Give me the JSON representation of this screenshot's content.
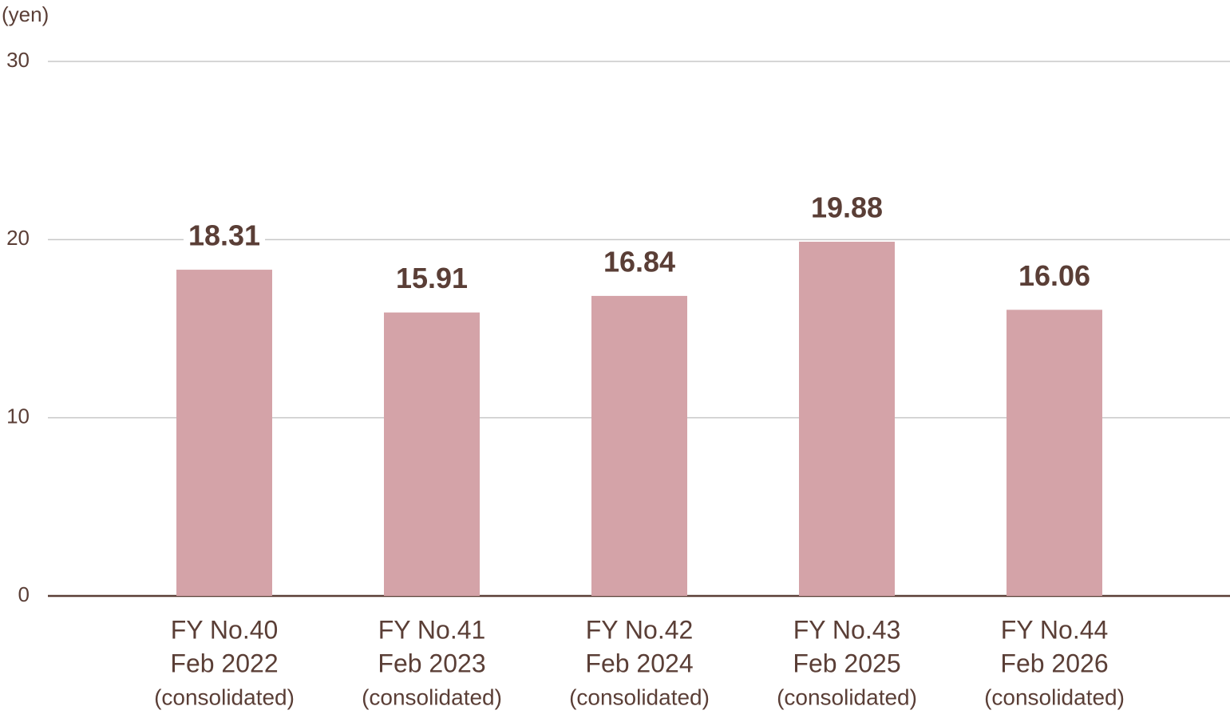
{
  "chart_data": {
    "type": "bar",
    "y_label": "(yen)",
    "categories": [
      [
        "FY No.40",
        "Feb 2022",
        "(consolidated)"
      ],
      [
        "FY No.41",
        "Feb 2023",
        "(consolidated)"
      ],
      [
        "FY No.42",
        "Feb 2024",
        "(consolidated)"
      ],
      [
        "FY No.43",
        "Feb 2025",
        "(consolidated)"
      ],
      [
        "FY No.44",
        "Feb 2026",
        "(consolidated)"
      ]
    ],
    "values": [
      18.31,
      15.91,
      16.84,
      19.88,
      16.06
    ],
    "color": "#d4a3a8",
    "ylim": [
      0,
      30
    ],
    "yticks": [
      0,
      10,
      20,
      30
    ],
    "grid": true
  }
}
